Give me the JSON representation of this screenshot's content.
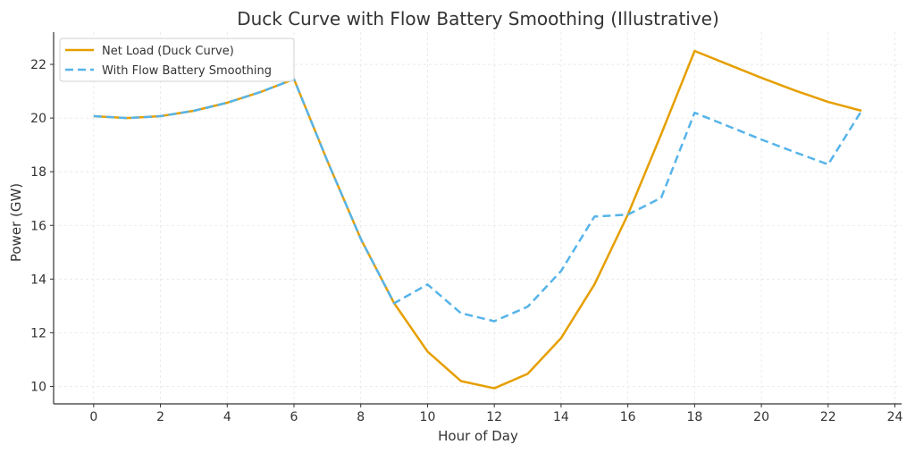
{
  "chart_data": {
    "type": "line",
    "title": "Duck Curve with Flow Battery Smoothing (Illustrative)",
    "xlabel": "Hour of Day",
    "ylabel": "Power (GW)",
    "xlim": [
      -1.2,
      24.2
    ],
    "ylim": [
      9.35,
      23.2
    ],
    "xticks": [
      0,
      2,
      4,
      6,
      8,
      10,
      12,
      14,
      16,
      18,
      20,
      22,
      24
    ],
    "yticks": [
      10,
      12,
      14,
      16,
      18,
      20,
      22
    ],
    "grid": true,
    "legend_position": "top-left",
    "x": [
      0,
      1,
      2,
      3,
      4,
      5,
      6,
      7,
      8,
      9,
      10,
      11,
      12,
      13,
      14,
      15,
      16,
      17,
      18,
      19,
      20,
      21,
      22,
      23
    ],
    "series": [
      {
        "name": "Net Load (Duck Curve)",
        "color": "#E69F00",
        "style": "solid",
        "values": [
          20.07,
          20.0,
          20.07,
          20.27,
          20.57,
          20.97,
          21.45,
          18.4,
          15.5,
          13.1,
          11.3,
          10.2,
          9.93,
          10.47,
          11.8,
          13.8,
          16.4,
          19.4,
          22.5,
          22.0,
          21.5,
          21.03,
          20.6,
          20.27
        ]
      },
      {
        "name": "With Flow Battery Smoothing",
        "color": "#56B4E9",
        "style": "dashed",
        "values": [
          20.07,
          20.0,
          20.07,
          20.27,
          20.57,
          20.97,
          21.45,
          18.4,
          15.5,
          13.1,
          13.8,
          12.73,
          12.43,
          12.97,
          14.3,
          16.33,
          16.4,
          17.03,
          20.2,
          19.7,
          19.2,
          18.73,
          18.27,
          20.27
        ]
      }
    ]
  }
}
